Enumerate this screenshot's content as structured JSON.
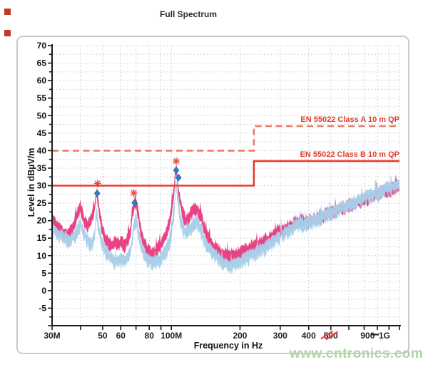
{
  "page": {
    "watermark": "www.cntronics.com"
  },
  "chart_data": {
    "type": "line",
    "title": "Full Spectrum",
    "xlabel": "Frequency in Hz",
    "ylabel": "Level in dBµV/m",
    "grid": true,
    "legend_position": "none",
    "x_axis": {
      "scale": "log",
      "unit": "MHz",
      "min_MHz": 30,
      "max_MHz": 1000,
      "tick_MHz": [
        30,
        40,
        50,
        60,
        70,
        80,
        90,
        100,
        200,
        300,
        400,
        500,
        600,
        700,
        800,
        900,
        1000
      ],
      "tick_labels": [
        {
          "MHz": 30,
          "label": "30M"
        },
        {
          "MHz": 50,
          "label": "50"
        },
        {
          "MHz": 60,
          "label": "60"
        },
        {
          "MHz": 80,
          "label": "80"
        },
        {
          "MHz": 100,
          "label": "100M"
        },
        {
          "MHz": 200,
          "label": "200"
        },
        {
          "MHz": 300,
          "label": "300"
        },
        {
          "MHz": 400,
          "label": "400"
        },
        {
          "MHz": 500,
          "label": "500",
          "defaced_red_scribble": true
        },
        {
          "MHz": 900,
          "label": "900",
          "dx": -30,
          "collided": true
        },
        {
          "MHz": 1000,
          "label": "1G",
          "dx": -21,
          "collided": true
        }
      ]
    },
    "y_axis": {
      "min": -10,
      "max": 70,
      "major_step": 5,
      "minor_step": 2.5,
      "labels": [
        70,
        65,
        60,
        55,
        50,
        45,
        40,
        35,
        30,
        25,
        20,
        15,
        10,
        5,
        0,
        -5
      ]
    },
    "limit_lines": [
      {
        "label": "EN 55022 Class A 10 m QP",
        "style": "dashed",
        "color": "#ee7a62",
        "segments_MHz_dB": [
          [
            30,
            40
          ],
          [
            230,
            40
          ],
          [
            230,
            47
          ],
          [
            1000,
            47
          ]
        ]
      },
      {
        "label": "EN 55022 Class B 10 m QP",
        "style": "solid",
        "color": "#e53c30",
        "segments_MHz_dB": [
          [
            30,
            30
          ],
          [
            230,
            30
          ],
          [
            230,
            37
          ],
          [
            1000,
            37
          ]
        ]
      }
    ],
    "series": [
      {
        "name": "peak-trace",
        "color": "#e73b80",
        "band_amp_dB": 2.4,
        "band_depth_dB": 2.6,
        "seed": 11,
        "points": [
          [
            30,
            20.5
          ],
          [
            31,
            19
          ],
          [
            32,
            18
          ],
          [
            33,
            17
          ],
          [
            34,
            16.5
          ],
          [
            35,
            16
          ],
          [
            36,
            16.6
          ],
          [
            37,
            18
          ],
          [
            38,
            20.5
          ],
          [
            39,
            22.5
          ],
          [
            40,
            24
          ],
          [
            41,
            21
          ],
          [
            42,
            19.5
          ],
          [
            43,
            18.5
          ],
          [
            44,
            20
          ],
          [
            45,
            21.5
          ],
          [
            46,
            23
          ],
          [
            47,
            28.5
          ],
          [
            48,
            24
          ],
          [
            49,
            20
          ],
          [
            50,
            17.5
          ],
          [
            51,
            15.5
          ],
          [
            52,
            14
          ],
          [
            53,
            13.5
          ],
          [
            54,
            13
          ],
          [
            55,
            12.8
          ],
          [
            56,
            13.5
          ],
          [
            57,
            14.5
          ],
          [
            58,
            13.8
          ],
          [
            59,
            13
          ],
          [
            60,
            14.2
          ],
          [
            61,
            13.2
          ],
          [
            62,
            12.8
          ],
          [
            63,
            13.5
          ],
          [
            64,
            14.5
          ],
          [
            65,
            15.5
          ],
          [
            66,
            17
          ],
          [
            67,
            20
          ],
          [
            68,
            23.5
          ],
          [
            69,
            25
          ],
          [
            70,
            25.8
          ],
          [
            71,
            23.5
          ],
          [
            72,
            21
          ],
          [
            73,
            18
          ],
          [
            74,
            16.5
          ],
          [
            75,
            15
          ],
          [
            76,
            13.5
          ],
          [
            77,
            12.5
          ],
          [
            78,
            12
          ],
          [
            80,
            11.2
          ],
          [
            82,
            10.8
          ],
          [
            84,
            11
          ],
          [
            86,
            11.5
          ],
          [
            88,
            12.2
          ],
          [
            90,
            13.2
          ],
          [
            92,
            14.5
          ],
          [
            94,
            16
          ],
          [
            96,
            17.5
          ],
          [
            98,
            19.5
          ],
          [
            100,
            23
          ],
          [
            102,
            27.5
          ],
          [
            103,
            30
          ],
          [
            104,
            33
          ],
          [
            105,
            34.8
          ],
          [
            106,
            33
          ],
          [
            107,
            30
          ],
          [
            108,
            27.5
          ],
          [
            110,
            24.5
          ],
          [
            112,
            22.5
          ],
          [
            114,
            20.8
          ],
          [
            116,
            20.2
          ],
          [
            118,
            20.8
          ],
          [
            120,
            21.5
          ],
          [
            123,
            22.4
          ],
          [
            126,
            23.2
          ],
          [
            129,
            23.5
          ],
          [
            132,
            22.6
          ],
          [
            136,
            20.5
          ],
          [
            140,
            17.5
          ],
          [
            144,
            15.5
          ],
          [
            148,
            14
          ],
          [
            152,
            13
          ],
          [
            158,
            12
          ],
          [
            164,
            11
          ],
          [
            170,
            10.5
          ],
          [
            178,
            10
          ],
          [
            186,
            10.2
          ],
          [
            195,
            10.8
          ],
          [
            205,
            11.2
          ],
          [
            215,
            11.8
          ],
          [
            228,
            12.5
          ],
          [
            240,
            13.2
          ],
          [
            252,
            14
          ],
          [
            265,
            14.8
          ],
          [
            278,
            15.5
          ],
          [
            290,
            16.2
          ],
          [
            292,
            17.5
          ],
          [
            293,
            26.5
          ],
          [
            294,
            17.5
          ],
          [
            300,
            16.8
          ],
          [
            308,
            17.2
          ],
          [
            316,
            17.8
          ],
          [
            325,
            18.2
          ],
          [
            335,
            18.8
          ],
          [
            345,
            19.2
          ],
          [
            356,
            19.6
          ],
          [
            368,
            19.9
          ],
          [
            380,
            20.1
          ],
          [
            395,
            19.8
          ],
          [
            412,
            20.2
          ],
          [
            430,
            20.7
          ],
          [
            450,
            21.2
          ],
          [
            470,
            21.7
          ],
          [
            492,
            22.2
          ],
          [
            515,
            22.7
          ],
          [
            540,
            23.2
          ],
          [
            566,
            23.7
          ],
          [
            594,
            24.2
          ],
          [
            623,
            24.7
          ],
          [
            654,
            25.2
          ],
          [
            686,
            25.7
          ],
          [
            720,
            26.3
          ],
          [
            756,
            26.9
          ],
          [
            793,
            27.5
          ],
          [
            832,
            28.1
          ],
          [
            873,
            28.6
          ],
          [
            916,
            29.1
          ],
          [
            961,
            29.5
          ],
          [
            1000,
            29.8
          ]
        ]
      },
      {
        "name": "average-trace",
        "color": "#a8cfe9",
        "band_amp_dB": 1.8,
        "band_depth_dB": 3.5,
        "seed": 29,
        "points": [
          [
            30,
            18.5
          ],
          [
            32,
            16.5
          ],
          [
            34,
            15.5
          ],
          [
            36,
            15
          ],
          [
            38,
            16.5
          ],
          [
            40,
            19.5
          ],
          [
            41,
            17.5
          ],
          [
            42,
            16
          ],
          [
            43,
            15
          ],
          [
            44,
            14
          ],
          [
            45,
            13.8
          ],
          [
            46,
            16
          ],
          [
            47,
            23.5
          ],
          [
            48,
            18
          ],
          [
            49,
            15.5
          ],
          [
            50,
            13.5
          ],
          [
            52,
            11.5
          ],
          [
            54,
            10
          ],
          [
            56,
            9
          ],
          [
            58,
            8.6
          ],
          [
            60,
            9.4
          ],
          [
            62,
            8.8
          ],
          [
            64,
            9.6
          ],
          [
            66,
            11
          ],
          [
            67,
            13.5
          ],
          [
            68,
            17.5
          ],
          [
            69,
            20
          ],
          [
            70,
            21.5
          ],
          [
            71,
            19
          ],
          [
            72,
            16
          ],
          [
            74,
            13
          ],
          [
            76,
            11
          ],
          [
            78,
            9.8
          ],
          [
            80,
            9
          ],
          [
            83,
            8.5
          ],
          [
            86,
            8.8
          ],
          [
            89,
            9.5
          ],
          [
            92,
            10.5
          ],
          [
            95,
            12
          ],
          [
            98,
            14.5
          ],
          [
            100,
            17.5
          ],
          [
            102,
            21.5
          ],
          [
            103,
            24
          ],
          [
            104,
            27.5
          ],
          [
            105,
            31
          ],
          [
            106,
            28.5
          ],
          [
            107,
            26
          ],
          [
            108,
            23.5
          ],
          [
            110,
            20.5
          ],
          [
            112,
            18.5
          ],
          [
            114,
            17.2
          ],
          [
            116,
            16.8
          ],
          [
            118,
            17.3
          ],
          [
            120,
            18
          ],
          [
            123,
            19
          ],
          [
            126,
            19.8
          ],
          [
            129,
            20
          ],
          [
            132,
            19
          ],
          [
            136,
            17
          ],
          [
            140,
            14.5
          ],
          [
            144,
            13
          ],
          [
            148,
            12
          ],
          [
            152,
            11.2
          ],
          [
            158,
            10.2
          ],
          [
            164,
            9.2
          ],
          [
            170,
            8.4
          ],
          [
            178,
            7.8
          ],
          [
            186,
            7.8
          ],
          [
            195,
            8.4
          ],
          [
            205,
            9.2
          ],
          [
            215,
            10
          ],
          [
            228,
            10.9
          ],
          [
            240,
            11.7
          ],
          [
            252,
            12.5
          ],
          [
            265,
            13.4
          ],
          [
            278,
            14.4
          ],
          [
            290,
            15.3
          ],
          [
            300,
            16
          ],
          [
            302,
            16.2
          ],
          [
            303,
            23.5
          ],
          [
            304,
            16.3
          ],
          [
            312,
            16.8
          ],
          [
            313,
            22.5
          ],
          [
            314,
            16.9
          ],
          [
            322,
            17.4
          ],
          [
            332,
            18
          ],
          [
            342,
            18.6
          ],
          [
            354,
            19.2
          ],
          [
            366,
            19.4
          ],
          [
            380,
            19.6
          ],
          [
            395,
            19.9
          ],
          [
            412,
            20.3
          ],
          [
            430,
            20.8
          ],
          [
            450,
            21.3
          ],
          [
            470,
            21.9
          ],
          [
            492,
            22.5
          ],
          [
            515,
            23.1
          ],
          [
            540,
            23.7
          ],
          [
            566,
            24.3
          ],
          [
            594,
            24.9
          ],
          [
            623,
            25.5
          ],
          [
            654,
            26.1
          ],
          [
            686,
            26.7
          ],
          [
            720,
            27.3
          ],
          [
            756,
            27.9
          ],
          [
            793,
            28.5
          ],
          [
            832,
            29
          ],
          [
            873,
            29.5
          ],
          [
            916,
            30
          ],
          [
            961,
            30.4
          ],
          [
            1000,
            30.7
          ]
        ]
      }
    ],
    "markers": [
      {
        "shape": "asterisk",
        "color": "#e8473a",
        "MHz": 47.5,
        "dB": 30.6
      },
      {
        "shape": "diamond",
        "color": "#2e7fd2",
        "MHz": 47.3,
        "dB": 27.8
      },
      {
        "shape": "asterisk",
        "color": "#e8473a",
        "MHz": 68.5,
        "dB": 27.9
      },
      {
        "shape": "diamond",
        "color": "#2e7fd2",
        "MHz": 69,
        "dB": 25.1
      },
      {
        "shape": "asterisk",
        "color": "#e8473a",
        "MHz": 105,
        "dB": 37.0
      },
      {
        "shape": "diamond",
        "color": "#2e7fd2",
        "MHz": 105,
        "dB": 34.4
      },
      {
        "shape": "diamond",
        "color": "#2e7fd2",
        "MHz": 107.5,
        "dB": 32.3
      }
    ],
    "colors": {
      "grid": "#c6c6c6",
      "axis": "#1a1a1a",
      "frame": "#c9c9c9",
      "limit_label": "#e23b2e",
      "watermark": "#aed6a6",
      "scribble": "#df3b32"
    }
  }
}
